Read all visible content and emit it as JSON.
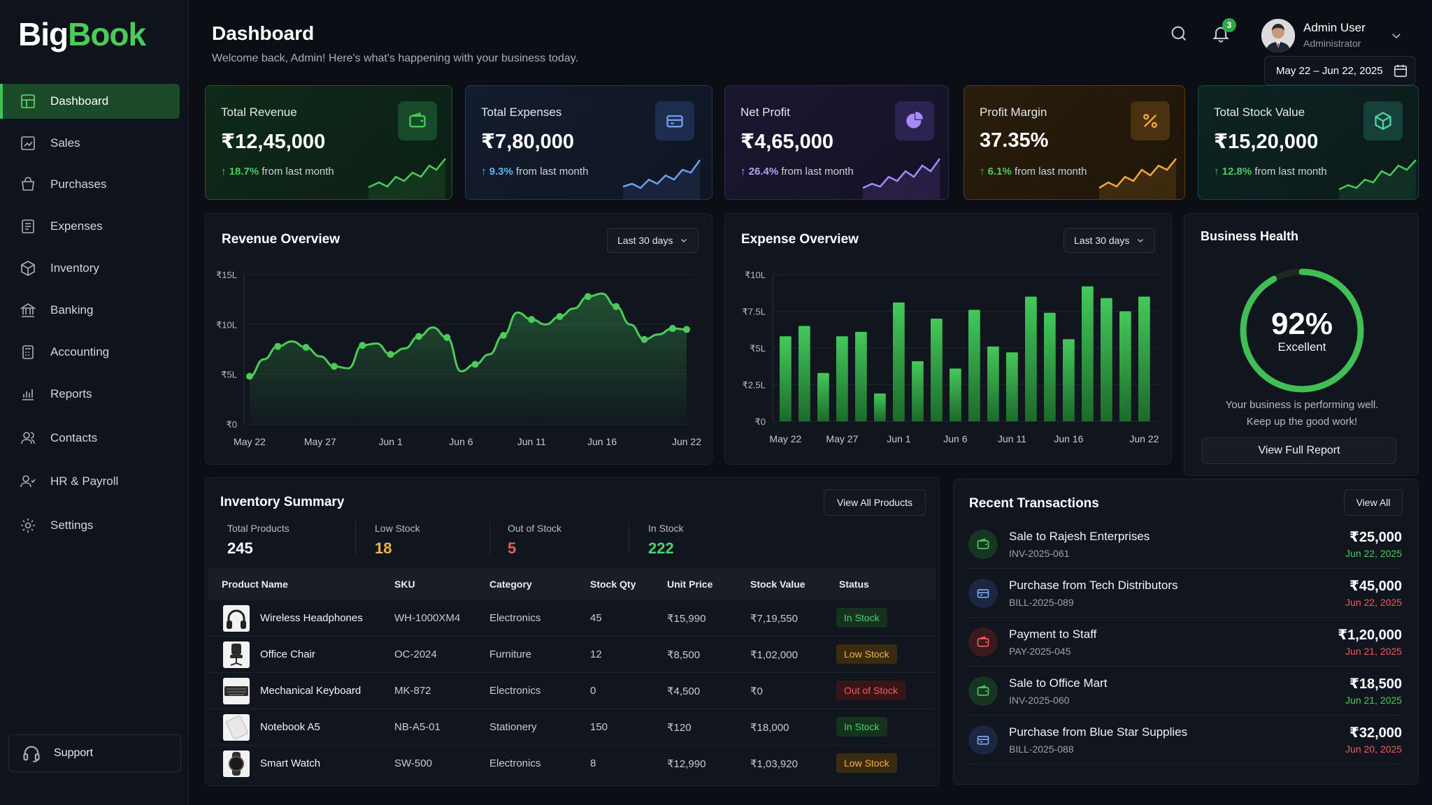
{
  "brand": {
    "part1": "Big",
    "part2": "Book"
  },
  "sidebar": {
    "items": [
      {
        "label": "Dashboard",
        "icon": "dashboard-icon"
      },
      {
        "label": "Sales",
        "icon": "sales-icon"
      },
      {
        "label": "Purchases",
        "icon": "shopping-bag-icon"
      },
      {
        "label": "Expenses",
        "icon": "receipt-icon"
      },
      {
        "label": "Inventory",
        "icon": "box-icon"
      },
      {
        "label": "Banking",
        "icon": "bank-icon"
      },
      {
        "label": "Accounting",
        "icon": "calculator-icon"
      },
      {
        "label": "Reports",
        "icon": "bar-chart-icon"
      },
      {
        "label": "Contacts",
        "icon": "contacts-icon"
      },
      {
        "label": "HR & Payroll",
        "icon": "hr-icon"
      },
      {
        "label": "Settings",
        "icon": "gear-icon"
      }
    ],
    "active": "Dashboard",
    "support_label": "Support"
  },
  "header": {
    "title": "Dashboard",
    "subtitle": "Welcome back, Admin! Here's what's happening with your business today.",
    "notification_count": "3",
    "user_name": "Admin User",
    "user_role": "Administrator",
    "date_range": "May 22 – Jun 22, 2025"
  },
  "kpis": [
    {
      "label": "Total Revenue",
      "value": "₹12,45,000",
      "delta": "18.7%",
      "delta_text": "from last month",
      "accent": "#4ccb5b",
      "icon": "wallet-icon"
    },
    {
      "label": "Total Expenses",
      "value": "₹7,80,000",
      "delta": "9.3%",
      "delta_text": "from last month",
      "accent": "#5b8fe8",
      "icon": "card-icon"
    },
    {
      "label": "Net Profit",
      "value": "₹4,65,000",
      "delta": "26.4%",
      "delta_text": "from last month",
      "accent": "#9a6cf0",
      "icon": "pie-icon"
    },
    {
      "label": "Profit Margin",
      "value": "37.35%",
      "delta": "6.1%",
      "delta_text": "from last month",
      "accent": "#f0a23a",
      "icon": "percent-icon"
    },
    {
      "label": "Total Stock Value",
      "value": "₹15,20,000",
      "delta": "12.8%",
      "delta_text": "from last month",
      "accent": "#3fc27a",
      "icon": "cube-icon"
    }
  ],
  "revenue_overview": {
    "title": "Revenue Overview",
    "filter": "Last 30 days"
  },
  "expense_overview": {
    "title": "Expense Overview",
    "filter": "Last 30 days"
  },
  "chart_data": [
    {
      "type": "line",
      "title": "Revenue Overview",
      "x": [
        "May 22",
        "May 23",
        "May 24",
        "May 25",
        "May 26",
        "May 27",
        "May 28",
        "May 29",
        "May 30",
        "May 31",
        "Jun 1",
        "Jun 2",
        "Jun 3",
        "Jun 4",
        "Jun 5",
        "Jun 6",
        "Jun 7",
        "Jun 8",
        "Jun 9",
        "Jun 10",
        "Jun 11",
        "Jun 12",
        "Jun 13",
        "Jun 14",
        "Jun 15",
        "Jun 16",
        "Jun 17",
        "Jun 18",
        "Jun 19",
        "Jun 20",
        "Jun 21",
        "Jun 22"
      ],
      "y": [
        4.8,
        6.5,
        7.8,
        8.3,
        7.7,
        6.8,
        5.8,
        5.6,
        7.9,
        8.1,
        7.0,
        7.6,
        8.8,
        9.7,
        8.7,
        5.3,
        6.0,
        7.0,
        8.9,
        11.2,
        10.5,
        10.0,
        10.8,
        11.6,
        12.8,
        13.1,
        11.8,
        10.0,
        8.5,
        9.0,
        9.6,
        9.5
      ],
      "tick_labels": [
        "May 22",
        "May 27",
        "Jun 1",
        "Jun 6",
        "Jun 11",
        "Jun 16",
        "Jun 22"
      ],
      "yticks": [
        "₹0",
        "₹5L",
        "₹10L",
        "₹15L"
      ],
      "ylim": [
        0,
        15
      ],
      "grid": true
    },
    {
      "type": "bar",
      "title": "Expense Overview",
      "values": [
        5.8,
        6.5,
        3.3,
        5.8,
        6.1,
        1.9,
        8.1,
        4.1,
        7.0,
        3.6,
        7.6,
        5.1,
        4.7,
        8.5,
        7.4,
        5.6,
        9.2,
        8.4,
        7.5,
        8.5
      ],
      "tick_labels": [
        "May 22",
        "May 27",
        "Jun 1",
        "Jun 6",
        "Jun 11",
        "Jun 16",
        "Jun 22"
      ],
      "yticks": [
        "₹0",
        "₹2.5L",
        "₹5L",
        "₹7.5L",
        "₹10L"
      ],
      "ylim": [
        0,
        10
      ],
      "grid": true
    }
  ],
  "business_health": {
    "title": "Business Health",
    "score": "92%",
    "score_value": 92,
    "rating": "Excellent",
    "message1": "Your business is performing well.",
    "message2": "Keep up the good work!",
    "button": "View Full Report"
  },
  "inventory": {
    "title": "Inventory Summary",
    "view_all": "View All Products",
    "stats": [
      {
        "label": "Total Products",
        "value": "245",
        "color": "#ffffff"
      },
      {
        "label": "Low Stock",
        "value": "18",
        "color": "#f1b34a"
      },
      {
        "label": "Out of Stock",
        "value": "5",
        "color": "#ef5b5b"
      },
      {
        "label": "In Stock",
        "value": "222",
        "color": "#4fd06a"
      }
    ],
    "columns": [
      "Product Name",
      "SKU",
      "Category",
      "Stock Qty",
      "Unit Price",
      "Stock Value",
      "Status"
    ],
    "rows": [
      {
        "name": "Wireless Headphones",
        "sku": "WH-1000XM4",
        "category": "Electronics",
        "qty": "45",
        "price": "₹15,990",
        "value": "₹7,19,550",
        "status": "In Stock",
        "status_type": "in"
      },
      {
        "name": "Office Chair",
        "sku": "OC-2024",
        "category": "Furniture",
        "qty": "12",
        "price": "₹8,500",
        "value": "₹1,02,000",
        "status": "Low Stock",
        "status_type": "low"
      },
      {
        "name": "Mechanical Keyboard",
        "sku": "MK-872",
        "category": "Electronics",
        "qty": "0",
        "price": "₹4,500",
        "value": "₹0",
        "status": "Out of Stock",
        "status_type": "out"
      },
      {
        "name": "Notebook A5",
        "sku": "NB-A5-01",
        "category": "Stationery",
        "qty": "150",
        "price": "₹120",
        "value": "₹18,000",
        "status": "In Stock",
        "status_type": "in"
      },
      {
        "name": "Smart Watch",
        "sku": "SW-500",
        "category": "Electronics",
        "qty": "8",
        "price": "₹12,990",
        "value": "₹1,03,920",
        "status": "Low Stock",
        "status_type": "low"
      }
    ]
  },
  "transactions": {
    "title": "Recent Transactions",
    "view_all": "View All",
    "items": [
      {
        "title": "Sale to Rajesh Enterprises",
        "id": "INV-2025-061",
        "amount": "₹25,000",
        "date": "Jun 22, 2025",
        "kind": "sale"
      },
      {
        "title": "Purchase from Tech Distributors",
        "id": "BILL-2025-089",
        "amount": "₹45,000",
        "date": "Jun 22, 2025",
        "kind": "purchase"
      },
      {
        "title": "Payment to Staff",
        "id": "PAY-2025-045",
        "amount": "₹1,20,000",
        "date": "Jun 21, 2025",
        "kind": "payment"
      },
      {
        "title": "Sale to Office Mart",
        "id": "INV-2025-060",
        "amount": "₹18,500",
        "date": "Jun 21, 2025",
        "kind": "sale"
      },
      {
        "title": "Purchase from Blue Star Supplies",
        "id": "BILL-2025-088",
        "amount": "₹32,000",
        "date": "Jun 20, 2025",
        "kind": "purchase"
      }
    ]
  }
}
